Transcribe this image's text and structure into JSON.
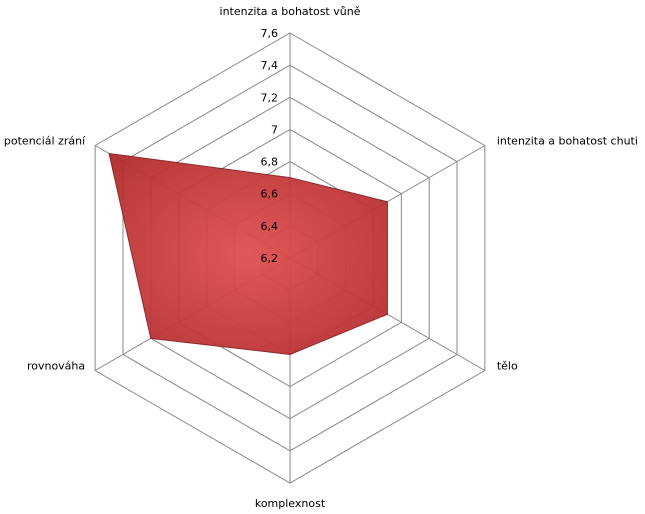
{
  "chart_data": {
    "type": "radar",
    "categories": [
      "intenzita a bohatost vůně",
      "intenzita a bohatost chuti",
      "tělo",
      "komplexnost",
      "rovnováha",
      "potenciál zrání"
    ],
    "values": [
      6.7,
      6.9,
      6.9,
      6.8,
      7.2,
      7.5
    ],
    "color": "#c8383a",
    "ylim": [
      6.2,
      7.6
    ],
    "yticks": [
      {
        "value": 6.2,
        "label": "6,2"
      },
      {
        "value": 6.4,
        "label": "6,4"
      },
      {
        "value": 6.6,
        "label": "6,6"
      },
      {
        "value": 6.8,
        "label": "6,8"
      },
      7,
      {
        "value": 7.2,
        "label": "7,2"
      },
      {
        "value": 7.4,
        "label": "7,4"
      },
      {
        "value": 7.6,
        "label": "7,6"
      }
    ],
    "grid": true
  }
}
